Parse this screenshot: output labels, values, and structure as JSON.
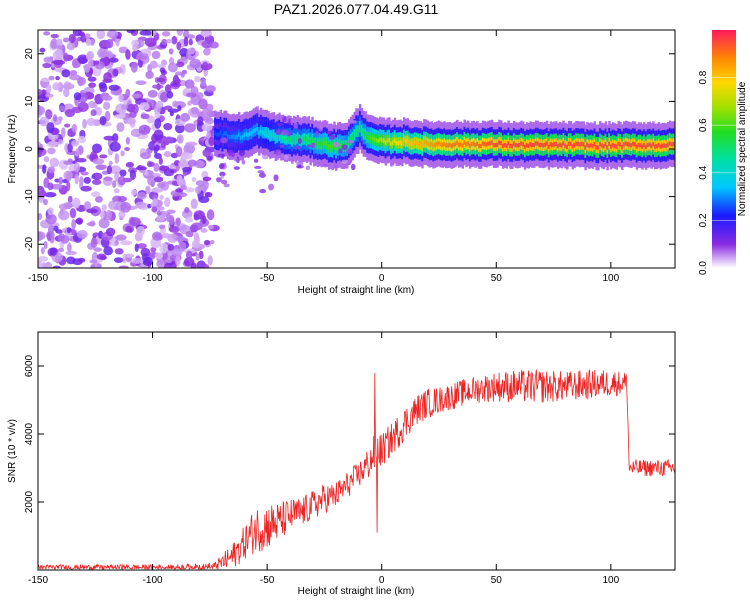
{
  "title": "PAZ1.2026.077.04.49.G11",
  "chart_data": [
    {
      "type": "heatmap",
      "name": "spectrogram",
      "xlabel": "Height of straight line (km)",
      "ylabel": "Frequency (Hz)",
      "xlim": [
        -150,
        128
      ],
      "ylim": [
        -25,
        25
      ],
      "xticks": [
        -150,
        -100,
        -50,
        0,
        50,
        100
      ],
      "xtick_labels": [
        "-150",
        "-100",
        "-50",
        "0",
        "50",
        "100"
      ],
      "yticks": [
        -20,
        -10,
        0,
        10,
        20
      ],
      "ytick_labels": [
        "-20",
        "-10",
        "0",
        "10",
        "20"
      ],
      "noise_region": {
        "x_range": [
          -150,
          -73
        ],
        "level": 0.35
      },
      "signal_ridge": {
        "x": [
          -73,
          -65,
          -58,
          -55,
          -50,
          -45,
          -40,
          -35,
          -30,
          -25,
          -20,
          -15,
          -12,
          -10,
          -5,
          0,
          10,
          20,
          30,
          40,
          50,
          60,
          70,
          80,
          90,
          100,
          110,
          120,
          128
        ],
        "freq": [
          3.5,
          2.5,
          3.0,
          4.0,
          3.0,
          2.5,
          2.0,
          2.0,
          1.5,
          1.0,
          0.5,
          1.0,
          3.0,
          4.5,
          2.0,
          1.5,
          1.5,
          1.0,
          1.0,
          1.0,
          1.0,
          0.8,
          0.8,
          0.8,
          0.7,
          0.7,
          0.8,
          0.8,
          0.8
        ],
        "peak_amplitude": [
          0.25,
          0.3,
          0.35,
          0.35,
          0.4,
          0.45,
          0.5,
          0.5,
          0.55,
          0.6,
          0.6,
          0.55,
          0.5,
          0.5,
          0.6,
          0.7,
          0.8,
          0.85,
          0.9,
          0.9,
          0.95,
          0.95,
          0.95,
          0.95,
          0.95,
          0.95,
          0.95,
          0.95,
          0.95
        ]
      },
      "colorbar": {
        "label": "Normalized spectral amplitude",
        "range": [
          0,
          1
        ],
        "ticks": [
          0.0,
          0.2,
          0.4,
          0.6,
          0.8
        ],
        "tick_labels": [
          "0.0",
          "0.2",
          "0.4",
          "0.6",
          "0.8"
        ]
      }
    },
    {
      "type": "line",
      "name": "snr",
      "xlabel": "Height of straight line (km)",
      "ylabel": "SNR (10 * v/v)",
      "xlim": [
        -150,
        128
      ],
      "ylim": [
        0,
        7000
      ],
      "xticks": [
        -150,
        -100,
        -50,
        0,
        50,
        100
      ],
      "xtick_labels": [
        "-150",
        "-100",
        "-50",
        "0",
        "50",
        "100"
      ],
      "yticks": [
        2000,
        4000,
        6000
      ],
      "ytick_labels": [
        "2000",
        "4000",
        "6000"
      ],
      "color": "#ee2222",
      "series": [
        {
          "name": "SNR",
          "x": [
            -150,
            -120,
            -90,
            -73,
            -65,
            -60,
            -55,
            -50,
            -45,
            -40,
            -35,
            -30,
            -25,
            -20,
            -15,
            -10,
            -5,
            -2,
            0,
            5,
            10,
            15,
            20,
            25,
            30,
            40,
            50,
            60,
            70,
            80,
            90,
            100,
            107,
            108,
            115,
            128
          ],
          "y": [
            80,
            80,
            80,
            100,
            400,
            800,
            1200,
            1300,
            1400,
            1600,
            1700,
            1900,
            2100,
            2200,
            2500,
            2800,
            3200,
            3600,
            3500,
            3900,
            4300,
            4700,
            4900,
            5000,
            5100,
            5300,
            5400,
            5400,
            5400,
            5400,
            5450,
            5500,
            5500,
            3000,
            3000,
            3000
          ],
          "noise": [
            80,
            80,
            80,
            120,
            400,
            500,
            700,
            700,
            600,
            500,
            450,
            450,
            450,
            400,
            400,
            400,
            500,
            600,
            500,
            500,
            500,
            450,
            450,
            400,
            400,
            400,
            450,
            500,
            500,
            450,
            450,
            400,
            350,
            250,
            250,
            250
          ]
        }
      ],
      "annotations": [
        {
          "x": -3,
          "y": 5800,
          "kind": "spike"
        },
        {
          "x": -2,
          "y": 1100,
          "kind": "dip"
        }
      ]
    }
  ],
  "colors": {
    "signal": "#ee2222",
    "noise_purple": "#7b2be8"
  }
}
